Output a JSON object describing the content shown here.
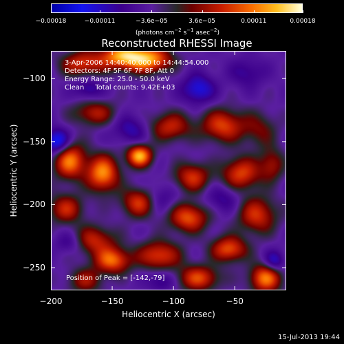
{
  "chart_data": {
    "type": "heatmap",
    "title": "Reconstructed RHESSI Image",
    "xlabel": "Heliocentric X (arcsec)",
    "ylabel": "Heliocentric Y (arcsec)",
    "xlim": [
      -200,
      -8
    ],
    "ylim": [
      -268,
      -78
    ],
    "x_ticks": [
      -200,
      -150,
      -100,
      -50
    ],
    "x_tick_labels": [
      "−200",
      "−150",
      "−100",
      "−50"
    ],
    "y_ticks": [
      -100,
      -150,
      -200,
      -250
    ],
    "y_tick_labels": [
      "−100",
      "−150",
      "−200",
      "−250"
    ],
    "colorbar": {
      "ticks": [
        -0.00018,
        -0.00011,
        -3.6e-05,
        3.6e-05,
        0.00011,
        0.00018
      ],
      "tick_labels": [
        "−0.00018",
        "−0.00011",
        "−3.6e−05",
        "3.6e−05",
        "0.00011",
        "0.00018"
      ],
      "range": [
        -0.00018,
        0.00018
      ],
      "unit_parts": [
        "(photons cm",
        "−2",
        " s",
        "−1",
        " asec",
        "−2",
        ")"
      ]
    },
    "info_lines": [
      "3-Apr-2006 14:40:40.000 to 14:44:54.000",
      "Detectors: 4F 5F 6F 7F 8F, Att 0",
      "Energy Range: 25.0 - 50.0 keV",
      "Clean     Total counts: 9.42E+03"
    ],
    "peak_text": "Position of Peak = [-142,-79]",
    "peak_position": [
      -142,
      -79
    ],
    "intensity_blobs": [
      {
        "x": -140,
        "y": -82,
        "value": 0.00018,
        "sx": 14,
        "sy": 7
      },
      {
        "x": -118,
        "y": -85,
        "value": 0.00013,
        "sx": 12,
        "sy": 7
      },
      {
        "x": -175,
        "y": -88,
        "value": 0.00011,
        "sx": 12,
        "sy": 7
      },
      {
        "x": -165,
        "y": -127,
        "value": 9e-05,
        "sx": 12,
        "sy": 7
      },
      {
        "x": -103,
        "y": -138,
        "value": 0.0001,
        "sx": 12,
        "sy": 8
      },
      {
        "x": -60,
        "y": -137,
        "value": 0.00012,
        "sx": 12,
        "sy": 9
      },
      {
        "x": -30,
        "y": -140,
        "value": 6e-05,
        "sx": 10,
        "sy": 10
      },
      {
        "x": -185,
        "y": -165,
        "value": 0.00015,
        "sx": 9,
        "sy": 10
      },
      {
        "x": -158,
        "y": -175,
        "value": 0.00016,
        "sx": 9,
        "sy": 10
      },
      {
        "x": -128,
        "y": -161,
        "value": 0.00018,
        "sx": 7,
        "sy": 6
      },
      {
        "x": -85,
        "y": -178,
        "value": 0.00011,
        "sx": 10,
        "sy": 8
      },
      {
        "x": -45,
        "y": -175,
        "value": 0.00012,
        "sx": 11,
        "sy": 9
      },
      {
        "x": -20,
        "y": -168,
        "value": 8e-05,
        "sx": 7,
        "sy": 9
      },
      {
        "x": -188,
        "y": -203,
        "value": 0.0001,
        "sx": 10,
        "sy": 8
      },
      {
        "x": -128,
        "y": -198,
        "value": 0.00012,
        "sx": 10,
        "sy": 8
      },
      {
        "x": -88,
        "y": -210,
        "value": 0.00013,
        "sx": 11,
        "sy": 8
      },
      {
        "x": -32,
        "y": -208,
        "value": 0.00011,
        "sx": 11,
        "sy": 10
      },
      {
        "x": -165,
        "y": -228,
        "value": 0.0001,
        "sx": 12,
        "sy": 8
      },
      {
        "x": -112,
        "y": -240,
        "value": 0.00012,
        "sx": 12,
        "sy": 8
      },
      {
        "x": -55,
        "y": -235,
        "value": 0.00013,
        "sx": 10,
        "sy": 7
      },
      {
        "x": -150,
        "y": -244,
        "value": 0.00014,
        "sx": 10,
        "sy": 7
      },
      {
        "x": -172,
        "y": -260,
        "value": 8e-05,
        "sx": 10,
        "sy": 7
      },
      {
        "x": -80,
        "y": -258,
        "value": 0.00012,
        "sx": 12,
        "sy": 7
      },
      {
        "x": -25,
        "y": -258,
        "value": 0.00015,
        "sx": 9,
        "sy": 8
      },
      {
        "x": -195,
        "y": -150,
        "value": -0.00012,
        "sx": 7,
        "sy": 7
      },
      {
        "x": -135,
        "y": -140,
        "value": -6e-05,
        "sx": 10,
        "sy": 8
      },
      {
        "x": -80,
        "y": -108,
        "value": -9e-05,
        "sx": 9,
        "sy": 8
      },
      {
        "x": -170,
        "y": -108,
        "value": -6e-05,
        "sx": 8,
        "sy": 6
      },
      {
        "x": -40,
        "y": -95,
        "value": -5e-05,
        "sx": 10,
        "sy": 8
      },
      {
        "x": -112,
        "y": -195,
        "value": -5e-05,
        "sx": 10,
        "sy": 8
      },
      {
        "x": -60,
        "y": -195,
        "value": -5e-05,
        "sx": 10,
        "sy": 8
      },
      {
        "x": -185,
        "y": -230,
        "value": -5e-05,
        "sx": 8,
        "sy": 6
      },
      {
        "x": -110,
        "y": -260,
        "value": -6e-05,
        "sx": 8,
        "sy": 6
      },
      {
        "x": -18,
        "y": -245,
        "value": -8e-05,
        "sx": 6,
        "sy": 6
      }
    ]
  },
  "footer": {
    "timestamp": "15-Jul-2013 19:44"
  }
}
